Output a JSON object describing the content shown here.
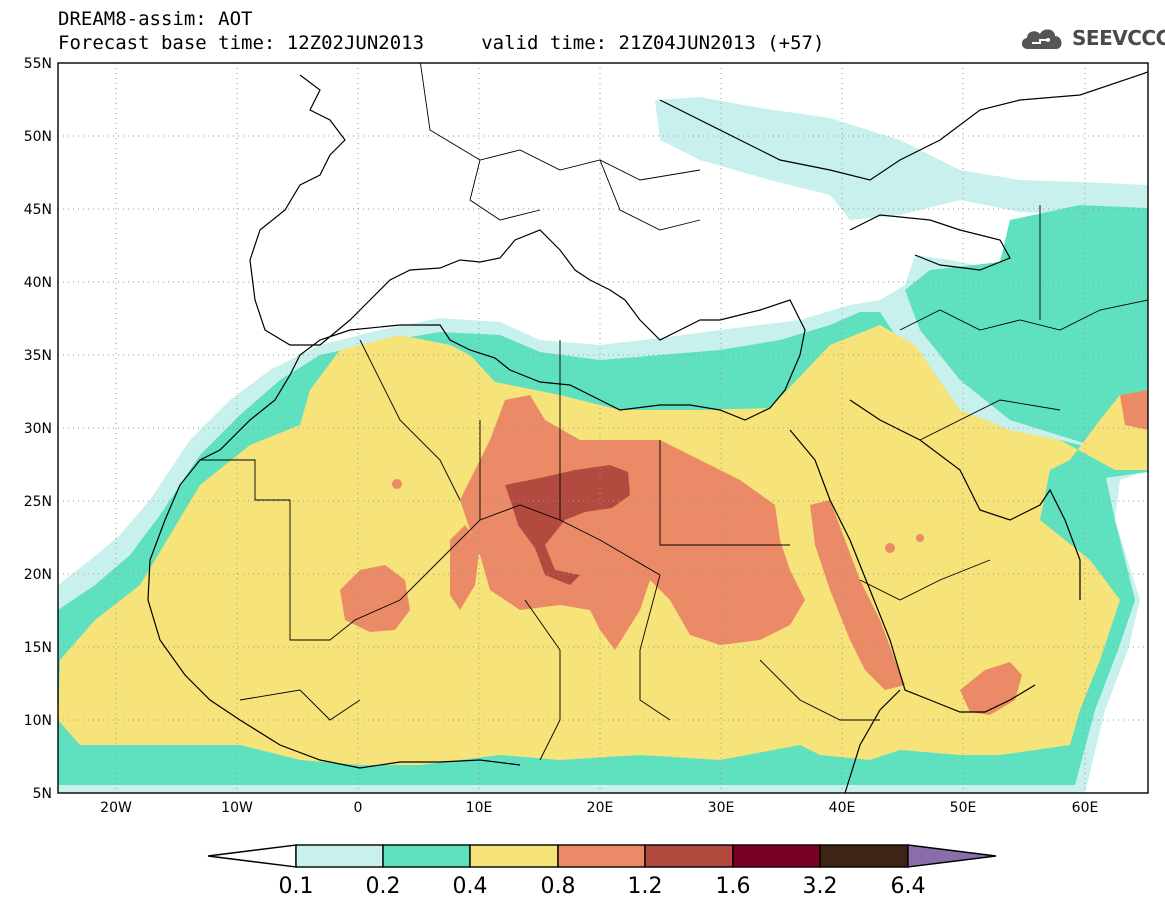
{
  "header": {
    "line1": "DREAM8-assim: AOT",
    "line2": "Forecast base time: 12Z02JUN2013     valid time: 21Z04JUN2013 (+57)"
  },
  "logo": {
    "text": "SEEVCCC",
    "icon": "cloud-logo-icon",
    "color": "#555555"
  },
  "map": {
    "lat_range": [
      5,
      55
    ],
    "lon_range": [
      -25,
      65
    ],
    "lat_labels": [
      "55N",
      "50N",
      "45N",
      "40N",
      "35N",
      "30N",
      "25N",
      "20N",
      "15N",
      "10N",
      "5N"
    ],
    "lon_labels": [
      "20W",
      "10W",
      "0",
      "10E",
      "20E",
      "30E",
      "40E",
      "50E",
      "60E"
    ],
    "grid": true
  },
  "colorbar": {
    "levels": [
      "0.1",
      "0.2",
      "0.4",
      "0.8",
      "1.2",
      "1.6",
      "3.2",
      "6.4"
    ],
    "colors": [
      "#ffffff",
      "#c8f0ec",
      "#5fe0bf",
      "#f6e37a",
      "#ea8a66",
      "#b24a40",
      "#7a0024",
      "#3e2414",
      "#8a6eaa"
    ]
  }
}
